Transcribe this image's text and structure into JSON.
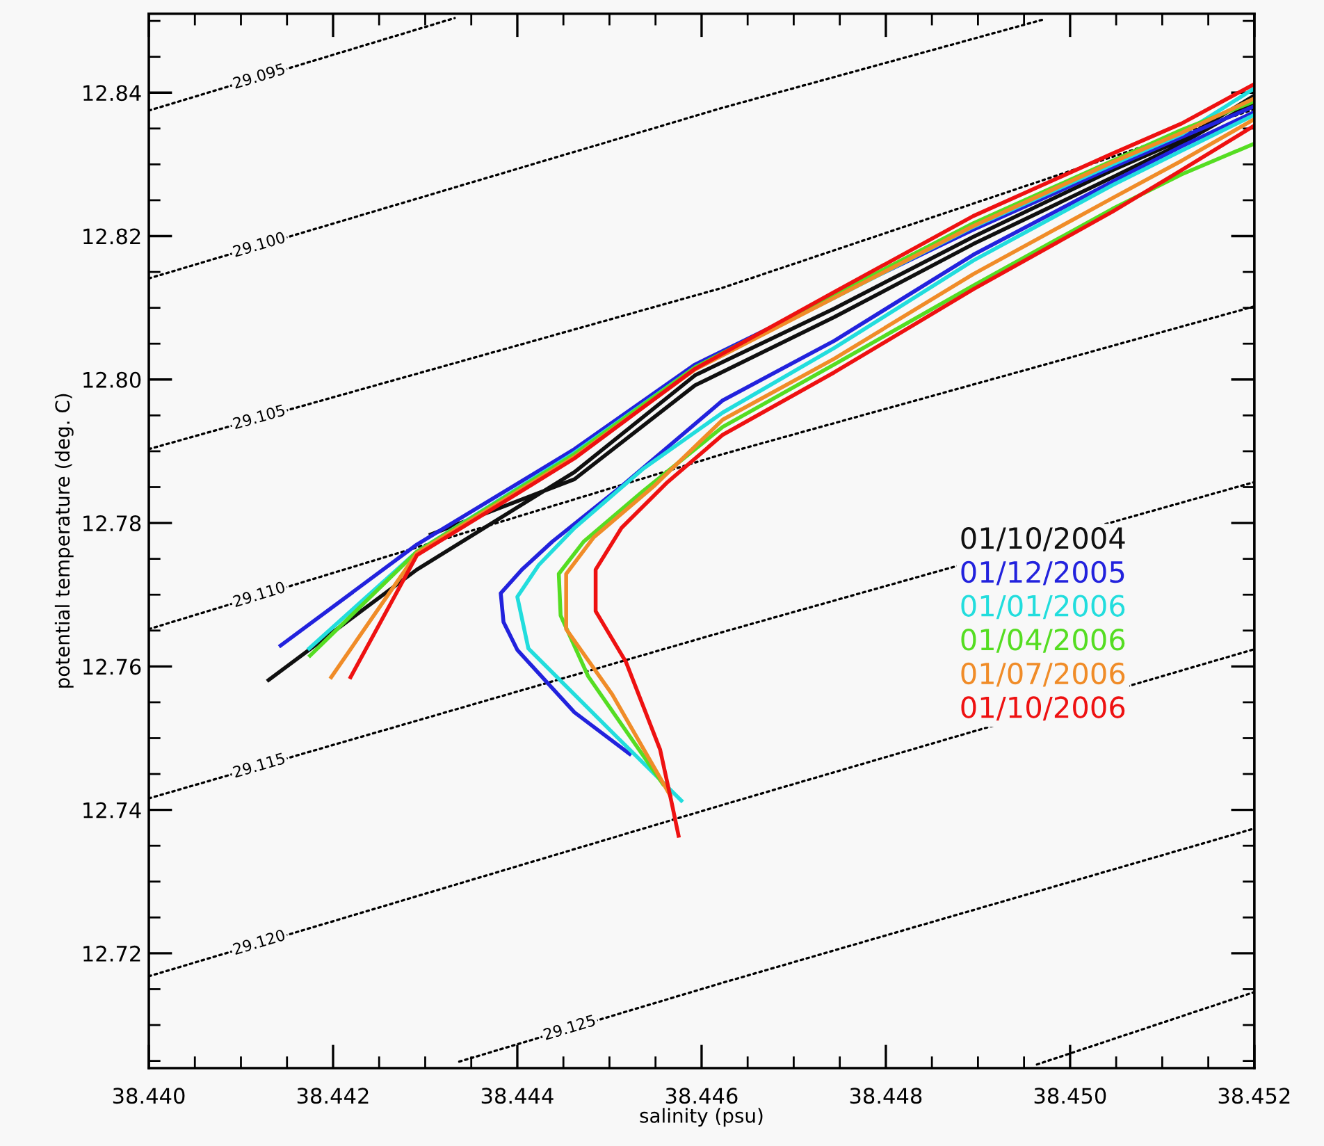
{
  "chart_data": {
    "type": "line",
    "xlabel": "salinity (psu)",
    "ylabel": "potential temperature (deg. C)",
    "xlim": [
      38.44,
      38.452
    ],
    "ylim": [
      12.704,
      12.851
    ],
    "xticks": [
      {
        "value": 38.44,
        "label": "38.440"
      },
      {
        "value": 38.442,
        "label": "38.442"
      },
      {
        "value": 38.444,
        "label": "38.444"
      },
      {
        "value": 38.446,
        "label": "38.446"
      },
      {
        "value": 38.448,
        "label": "38.448"
      },
      {
        "value": 38.45,
        "label": "38.450"
      },
      {
        "value": 38.452,
        "label": "38.452"
      }
    ],
    "yticks": [
      {
        "value": 12.72,
        "label": "12.72"
      },
      {
        "value": 12.74,
        "label": "12.74"
      },
      {
        "value": 12.76,
        "label": "12.76"
      },
      {
        "value": 12.78,
        "label": "12.78"
      },
      {
        "value": 12.8,
        "label": "12.80"
      },
      {
        "value": 12.82,
        "label": "12.82"
      },
      {
        "value": 12.84,
        "label": "12.84"
      }
    ],
    "grid": false,
    "legend": "right",
    "marker": "none",
    "series": [
      {
        "name": "29.095",
        "color": "#000000",
        "line_style": "dotted",
        "x": [
          38.44,
          38.44332
        ],
        "values": [
          12.8375,
          12.8504
        ]
      },
      {
        "name": "29.100",
        "color": "#000000",
        "line_style": "dotted",
        "x": [
          38.44,
          38.44623,
          38.44971
        ],
        "values": [
          12.8141,
          12.8379,
          12.8502
        ]
      },
      {
        "name": "29.105",
        "color": "#000000",
        "line_style": "dotted",
        "x": [
          38.44,
          38.44623,
          38.452
        ],
        "values": [
          12.7903,
          12.8128,
          12.8377
        ]
      },
      {
        "name": "29.110",
        "color": "#000000",
        "line_style": "dotted",
        "x": [
          38.44,
          38.44623,
          38.452
        ],
        "values": [
          12.7652,
          12.7896,
          12.8102
        ]
      },
      {
        "name": "29.115",
        "color": "#000000",
        "line_style": "dotted",
        "x": [
          38.44,
          38.44623,
          38.452
        ],
        "values": [
          12.7416,
          12.7648,
          12.7857
        ]
      },
      {
        "name": "29.120",
        "color": "#000000",
        "line_style": "dotted",
        "x": [
          38.44,
          38.44623,
          38.452
        ],
        "values": [
          12.7168,
          12.7407,
          12.7624
        ]
      },
      {
        "name": "29.125",
        "color": "#000000",
        "line_style": "dotted",
        "x": [
          38.44337,
          38.44623,
          38.452
        ],
        "values": [
          12.7049,
          12.7159,
          12.7374
        ]
      },
      {
        "color": "#000000",
        "line_style": "dotted",
        "x": [
          38.44964,
          38.452
        ],
        "values": [
          12.7045,
          12.7146
        ]
      },
      {
        "name": "01/10/2004",
        "color": "#101010",
        "line_style": "solid",
        "x": [
          38.4413,
          38.44291,
          38.44462,
          38.44593,
          38.44744,
          38.44895,
          38.45046,
          38.45121,
          38.452,
          null,
          38.44306,
          38.44462,
          38.44593,
          38.44744,
          38.44895,
          38.45046,
          38.45121,
          38.452
        ],
        "values": [
          12.7581,
          12.7735,
          12.7871,
          12.8006,
          12.8099,
          12.8199,
          12.8292,
          12.8334,
          12.8396,
          null,
          12.7784,
          12.7861,
          12.7992,
          12.8087,
          12.8189,
          12.8282,
          12.8329,
          12.8387
        ]
      },
      {
        "name": "01/12/2005",
        "color": "#2222dd",
        "line_style": "solid",
        "x": [
          38.44143,
          38.44291,
          38.44462,
          38.44593,
          38.44744,
          38.44895,
          38.45046,
          38.45121,
          38.452,
          null,
          38.44522,
          38.44462,
          38.444,
          38.44385,
          38.44382,
          38.44405,
          38.44438,
          38.44513,
          38.44623,
          38.44744,
          38.44895,
          38.45046,
          38.45121,
          38.452
        ],
        "values": [
          12.7629,
          12.777,
          12.7903,
          12.8021,
          12.8116,
          12.8209,
          12.8296,
          12.8338,
          12.8381,
          null,
          12.7478,
          12.7536,
          12.7623,
          12.7662,
          12.7702,
          12.7735,
          12.7774,
          12.7851,
          12.7971,
          12.8054,
          12.8174,
          12.8276,
          12.8325,
          12.8373
        ]
      },
      {
        "name": "01/01/2006",
        "color": "#22dddd",
        "line_style": "solid",
        "x": [
          38.44174,
          38.44291,
          38.44462,
          38.44593,
          38.44744,
          38.44895,
          38.45046,
          38.45121,
          38.452,
          null,
          38.44578,
          38.44507,
          38.44412,
          38.444,
          38.44423,
          38.44462,
          38.44537,
          38.44623,
          38.44744,
          38.44895,
          38.45046,
          38.45121,
          38.452
        ],
        "values": [
          12.7625,
          12.776,
          12.7898,
          12.8017,
          12.8114,
          12.8213,
          12.83,
          12.8342,
          12.8406,
          null,
          12.7413,
          12.7503,
          12.7625,
          12.7697,
          12.7741,
          12.7793,
          12.7876,
          12.7954,
          12.8044,
          12.8166,
          12.8271,
          12.8319,
          12.8369
        ]
      },
      {
        "name": "01/04/2006",
        "color": "#55dd22",
        "line_style": "solid",
        "x": [
          38.44175,
          38.44291,
          38.44462,
          38.44593,
          38.44744,
          38.44895,
          38.45046,
          38.45121,
          38.452,
          null,
          38.44558,
          38.44477,
          38.44447,
          38.44445,
          38.44472,
          38.44537,
          38.44623,
          38.44744,
          38.44895,
          38.45046,
          38.45121,
          38.452
        ],
        "values": [
          12.7615,
          12.776,
          12.7896,
          12.8017,
          12.8118,
          12.8218,
          12.8305,
          12.8348,
          12.8388,
          null,
          12.7436,
          12.7586,
          12.7671,
          12.7729,
          12.7774,
          12.7845,
          12.7934,
          12.8021,
          12.8131,
          12.8238,
          12.8286,
          12.8329
        ]
      },
      {
        "name": "01/07/2006",
        "color": "#f08c28",
        "line_style": "solid",
        "x": [
          38.44198,
          38.44291,
          38.44462,
          38.44593,
          38.44744,
          38.44895,
          38.45046,
          38.45121,
          38.452,
          null,
          38.44566,
          38.44503,
          38.44453,
          38.44453,
          38.44483,
          38.44548,
          38.44623,
          38.44744,
          38.44895,
          38.45046,
          38.45121,
          38.452
        ],
        "values": [
          12.7585,
          12.7758,
          12.7892,
          12.8014,
          12.8114,
          12.8214,
          12.8303,
          12.8344,
          12.8392,
          null,
          12.742,
          12.7561,
          12.7652,
          12.7729,
          12.778,
          12.7851,
          12.7944,
          12.8029,
          12.8147,
          12.8253,
          12.8305,
          12.8363
        ]
      },
      {
        "name": "01/10/2006",
        "color": "#ee1111",
        "line_style": "solid",
        "x": [
          38.44219,
          38.44291,
          38.44462,
          38.44593,
          38.44744,
          38.44895,
          38.45046,
          38.45121,
          38.452,
          null,
          38.44575,
          38.44568,
          38.44555,
          38.44518,
          38.44485,
          38.44485,
          38.44513,
          38.44563,
          38.44623,
          38.44744,
          38.44895,
          38.45046,
          38.45121,
          38.452
        ],
        "values": [
          12.7585,
          12.7755,
          12.789,
          12.8015,
          12.8122,
          12.8228,
          12.8315,
          12.8357,
          12.8412,
          null,
          12.7364,
          12.7407,
          12.7484,
          12.7606,
          12.7677,
          12.7735,
          12.7793,
          12.7857,
          12.7923,
          12.801,
          12.8126,
          12.8234,
          12.8292,
          12.8354
        ]
      }
    ]
  }
}
